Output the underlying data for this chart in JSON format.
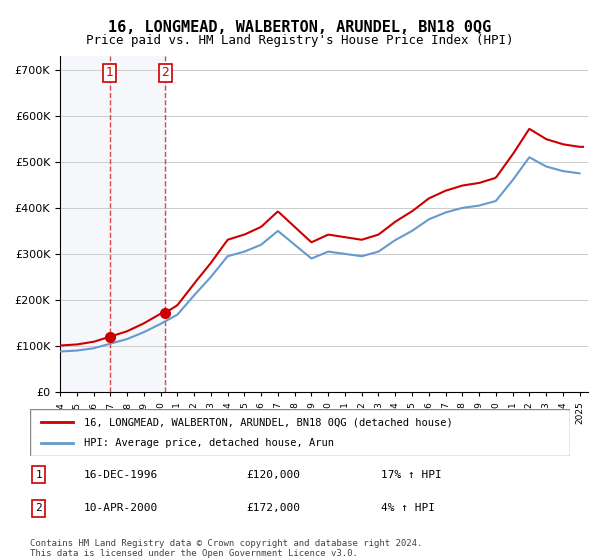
{
  "title": "16, LONGMEAD, WALBERTON, ARUNDEL, BN18 0QG",
  "subtitle": "Price paid vs. HM Land Registry's House Price Index (HPI)",
  "legend_line1": "16, LONGMEAD, WALBERTON, ARUNDEL, BN18 0QG (detached house)",
  "legend_line2": "HPI: Average price, detached house, Arun",
  "transaction1_label": "1",
  "transaction1_date": "16-DEC-1996",
  "transaction1_price": "£120,000",
  "transaction1_hpi": "17% ↑ HPI",
  "transaction2_label": "2",
  "transaction2_date": "10-APR-2000",
  "transaction2_price": "£172,000",
  "transaction2_hpi": "4% ↑ HPI",
  "footer": "Contains HM Land Registry data © Crown copyright and database right 2024.\nThis data is licensed under the Open Government Licence v3.0.",
  "sale_color": "#cc0000",
  "hpi_color": "#6699cc",
  "hatch_color": "#d0d8e8",
  "sale1_x": 1996.96,
  "sale1_y": 120000,
  "sale2_x": 2000.27,
  "sale2_y": 172000,
  "ylim": [
    0,
    730000
  ],
  "xlim_start": 1994.0,
  "xlim_end": 2025.5
}
